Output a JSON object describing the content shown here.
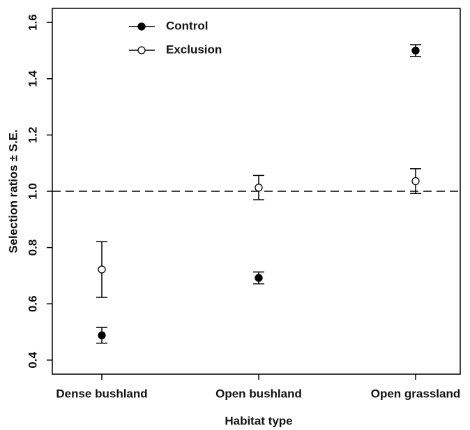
{
  "chart_data": {
    "type": "errorbar",
    "x_label": "Habitat type",
    "y_label": "Selection ratios ± S.E.",
    "categories": [
      "Dense bushland",
      "Open bushland",
      "Open grassland"
    ],
    "series": [
      {
        "name": "Control",
        "color": "#000000",
        "fill": "#000000",
        "values": [
          0.488,
          0.692,
          1.5
        ],
        "errors": [
          0.028,
          0.021,
          0.021
        ]
      },
      {
        "name": "Exclusion",
        "color": "#000000",
        "fill": "#ffffff",
        "values": [
          0.722,
          1.013,
          1.036
        ],
        "errors": [
          0.099,
          0.043,
          0.044
        ]
      }
    ],
    "reference_line": 1,
    "ylim": [
      0.35,
      1.65
    ],
    "yticks": [
      0.4,
      0.6,
      0.8,
      {
        "value": 1,
        "label": "1.0"
      },
      1.2,
      1.4,
      1.6
    ],
    "legend": "top-left"
  }
}
